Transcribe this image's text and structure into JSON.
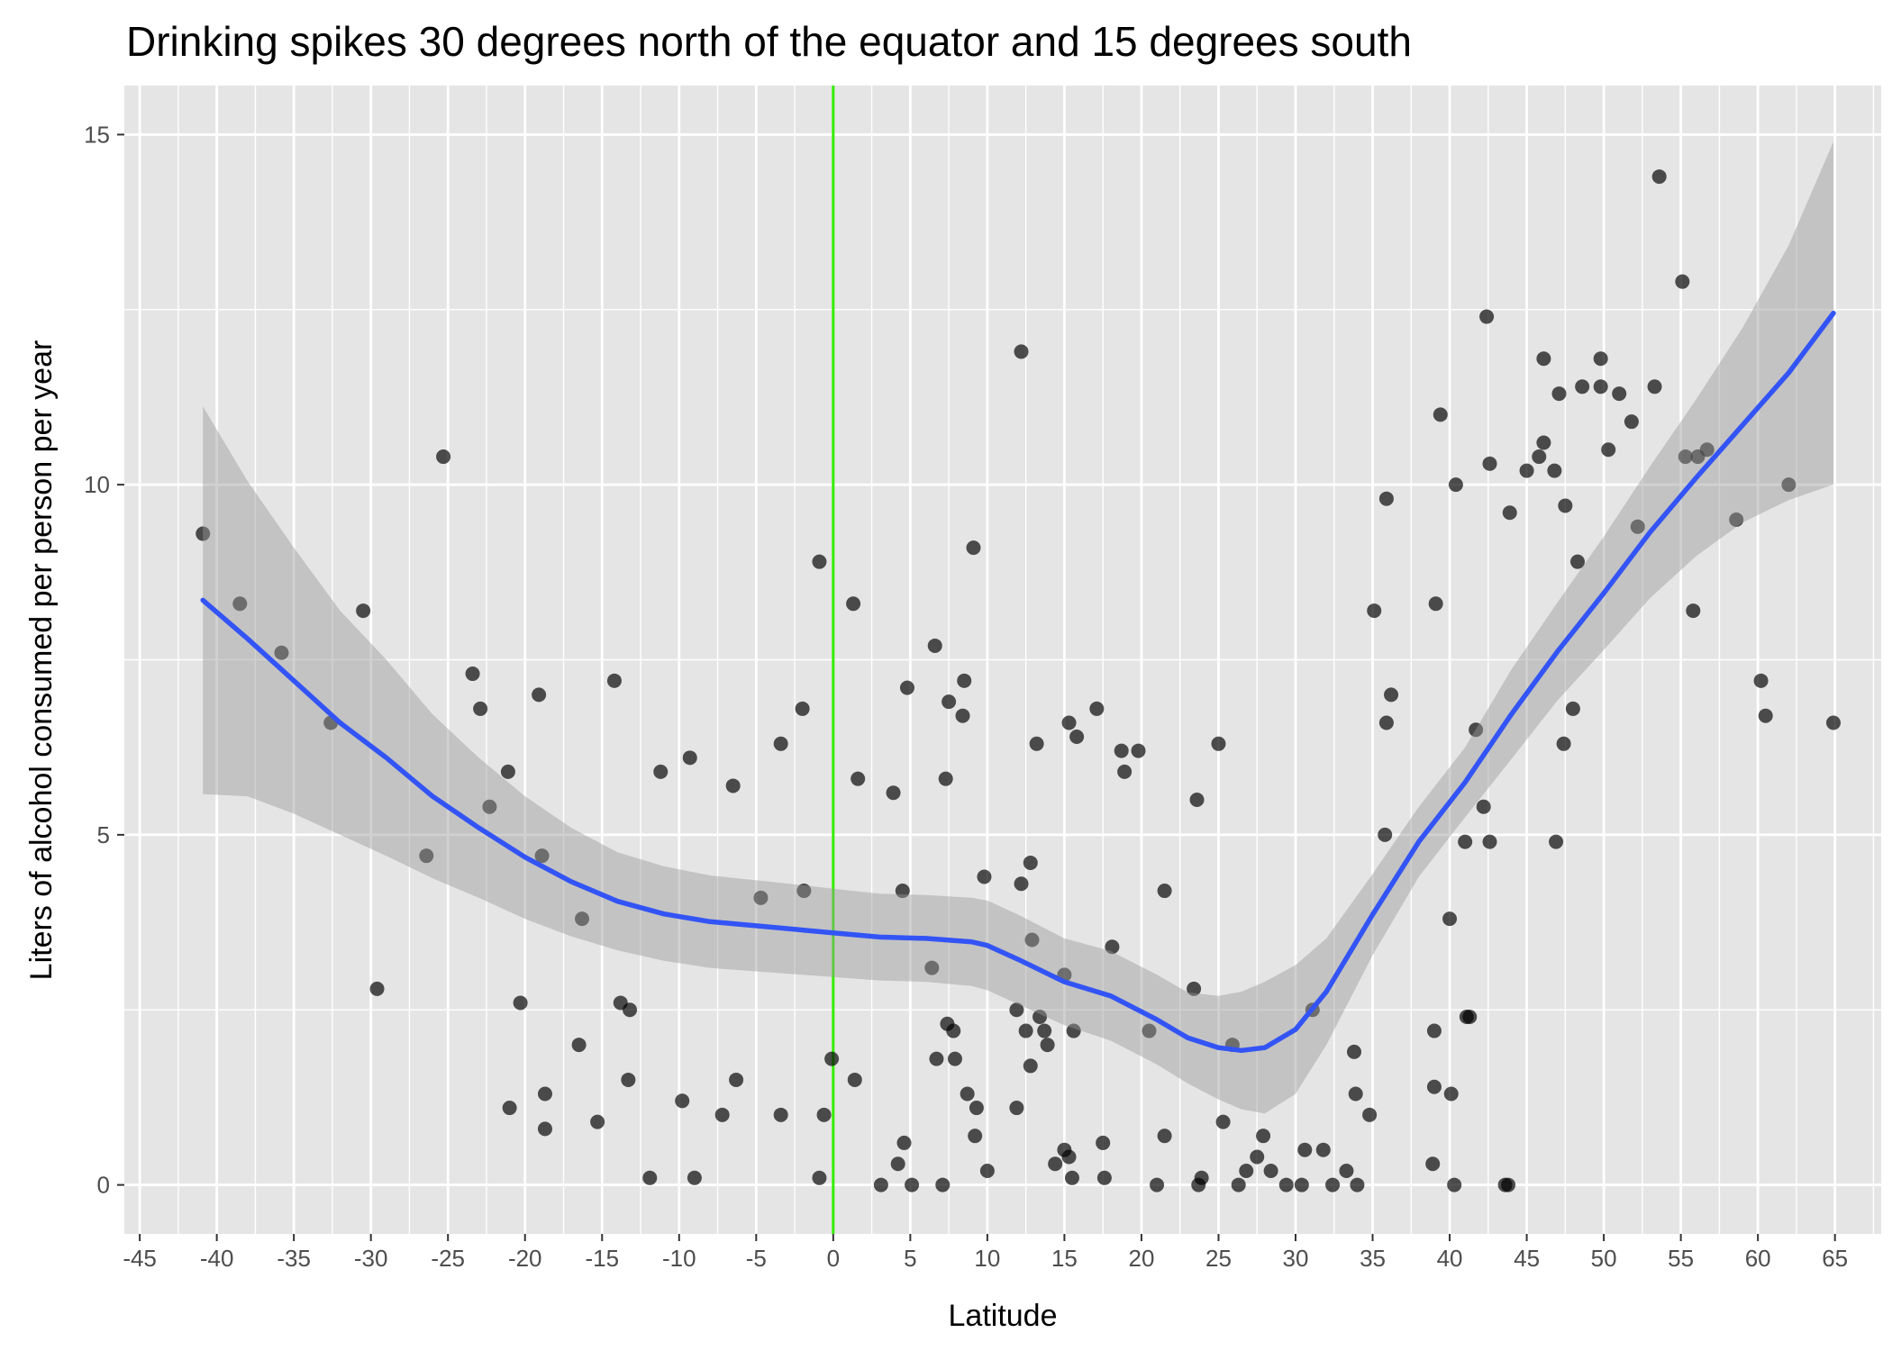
{
  "chart_data": {
    "type": "scatter",
    "title": "Drinking spikes 30 degrees north of the equator and 15 degrees south",
    "xlabel": "Latitude",
    "ylabel": "Liters of alcohol consumed per person per year",
    "xlim": [
      -46,
      68
    ],
    "ylim": [
      -0.7,
      15.7
    ],
    "x_ticks": [
      -45,
      -40,
      -35,
      -30,
      -25,
      -20,
      -15,
      -10,
      -5,
      0,
      5,
      10,
      15,
      20,
      25,
      30,
      35,
      40,
      45,
      50,
      55,
      60,
      65
    ],
    "y_ticks": [
      0,
      5,
      10,
      15
    ],
    "grid": true,
    "legend": "none",
    "colors": {
      "panel_background": "#e5e5e5",
      "grid_line": "#ffffff",
      "point": "#000000",
      "smooth_line": "#3354f5",
      "confidence_band": "#999999",
      "equator_line": "#33ee00"
    },
    "reference_line": {
      "axis": "x",
      "value": 0
    },
    "points": [
      [
        -40.9,
        9.3
      ],
      [
        -38.5,
        8.3
      ],
      [
        -35.8,
        7.6
      ],
      [
        -32.6,
        6.6
      ],
      [
        -30.5,
        8.2
      ],
      [
        -29.6,
        2.8
      ],
      [
        -26.4,
        4.7
      ],
      [
        -25.3,
        10.4
      ],
      [
        -23.4,
        7.3
      ],
      [
        -22.9,
        6.8
      ],
      [
        -22.3,
        5.4
      ],
      [
        -21.1,
        5.9
      ],
      [
        -21.0,
        1.1
      ],
      [
        -20.3,
        2.6
      ],
      [
        -19.1,
        7.0
      ],
      [
        -18.9,
        4.7
      ],
      [
        -18.7,
        1.3
      ],
      [
        -18.7,
        0.8
      ],
      [
        -16.3,
        3.8
      ],
      [
        -16.5,
        2.0
      ],
      [
        -15.3,
        0.9
      ],
      [
        -14.2,
        7.2
      ],
      [
        -13.8,
        2.6
      ],
      [
        -13.3,
        1.5
      ],
      [
        -13.2,
        2.5
      ],
      [
        -11.9,
        0.1
      ],
      [
        -11.2,
        5.9
      ],
      [
        -9.8,
        1.2
      ],
      [
        -9.3,
        6.1
      ],
      [
        -9.0,
        0.1
      ],
      [
        -7.2,
        1.0
      ],
      [
        -6.5,
        5.7
      ],
      [
        -6.3,
        1.5
      ],
      [
        -4.7,
        4.1
      ],
      [
        -3.4,
        6.3
      ],
      [
        -3.4,
        1.0
      ],
      [
        -1.9,
        4.2
      ],
      [
        -2.0,
        6.8
      ],
      [
        -0.9,
        8.9
      ],
      [
        -0.9,
        0.1
      ],
      [
        -0.6,
        1.0
      ],
      [
        -0.1,
        1.8
      ],
      [
        1.3,
        8.3
      ],
      [
        1.4,
        1.5
      ],
      [
        1.6,
        5.8
      ],
      [
        3.1,
        0.0
      ],
      [
        3.9,
        5.6
      ],
      [
        4.2,
        0.3
      ],
      [
        4.5,
        4.2
      ],
      [
        4.6,
        0.6
      ],
      [
        4.8,
        7.1
      ],
      [
        5.1,
        0.0
      ],
      [
        6.4,
        3.1
      ],
      [
        6.6,
        7.7
      ],
      [
        6.7,
        1.8
      ],
      [
        7.1,
        0.0
      ],
      [
        7.3,
        5.8
      ],
      [
        7.4,
        2.3
      ],
      [
        7.5,
        6.9
      ],
      [
        7.8,
        2.2
      ],
      [
        7.9,
        1.8
      ],
      [
        8.4,
        6.7
      ],
      [
        8.5,
        7.2
      ],
      [
        8.7,
        1.3
      ],
      [
        9.1,
        9.1
      ],
      [
        9.2,
        0.7
      ],
      [
        9.3,
        1.1
      ],
      [
        9.8,
        4.4
      ],
      [
        10.0,
        0.2
      ],
      [
        11.9,
        1.1
      ],
      [
        11.9,
        2.5
      ],
      [
        12.2,
        4.3
      ],
      [
        12.2,
        11.9
      ],
      [
        12.5,
        2.2
      ],
      [
        12.8,
        4.6
      ],
      [
        12.8,
        1.7
      ],
      [
        12.9,
        3.5
      ],
      [
        13.2,
        6.3
      ],
      [
        13.4,
        2.4
      ],
      [
        13.7,
        2.2
      ],
      [
        13.9,
        2.0
      ],
      [
        14.4,
        0.3
      ],
      [
        15.0,
        0.5
      ],
      [
        15.0,
        3.0
      ],
      [
        15.3,
        6.6
      ],
      [
        15.3,
        0.4
      ],
      [
        15.5,
        0.1
      ],
      [
        15.6,
        2.2
      ],
      [
        15.8,
        6.4
      ],
      [
        17.1,
        6.8
      ],
      [
        17.5,
        0.6
      ],
      [
        17.6,
        0.1
      ],
      [
        18.1,
        3.4
      ],
      [
        18.7,
        6.2
      ],
      [
        18.9,
        5.9
      ],
      [
        19.8,
        6.2
      ],
      [
        20.5,
        2.2
      ],
      [
        21.0,
        0.0
      ],
      [
        21.5,
        4.2
      ],
      [
        21.5,
        0.7
      ],
      [
        23.4,
        2.8
      ],
      [
        23.6,
        5.5
      ],
      [
        23.7,
        0.0
      ],
      [
        23.9,
        0.1
      ],
      [
        25.0,
        6.3
      ],
      [
        25.3,
        0.9
      ],
      [
        25.9,
        2.0
      ],
      [
        26.3,
        0.0
      ],
      [
        26.8,
        0.2
      ],
      [
        27.5,
        0.4
      ],
      [
        27.9,
        0.7
      ],
      [
        28.4,
        0.2
      ],
      [
        29.4,
        0.0
      ],
      [
        30.4,
        0.0
      ],
      [
        30.6,
        0.5
      ],
      [
        31.1,
        2.5
      ],
      [
        31.8,
        0.5
      ],
      [
        32.4,
        0.0
      ],
      [
        33.3,
        0.2
      ],
      [
        33.8,
        1.9
      ],
      [
        33.9,
        1.3
      ],
      [
        34.0,
        0.0
      ],
      [
        34.8,
        1.0
      ],
      [
        35.1,
        8.2
      ],
      [
        35.8,
        5.0
      ],
      [
        35.9,
        9.8
      ],
      [
        35.9,
        6.6
      ],
      [
        36.2,
        7.0
      ],
      [
        38.9,
        0.3
      ],
      [
        39.0,
        2.2
      ],
      [
        39.0,
        1.4
      ],
      [
        39.1,
        8.3
      ],
      [
        39.4,
        11.0
      ],
      [
        40.0,
        3.8
      ],
      [
        40.1,
        1.3
      ],
      [
        40.3,
        0.0
      ],
      [
        40.4,
        10.0
      ],
      [
        41.0,
        4.9
      ],
      [
        41.1,
        2.4
      ],
      [
        41.3,
        2.4
      ],
      [
        41.7,
        6.5
      ],
      [
        42.2,
        5.4
      ],
      [
        42.4,
        12.4
      ],
      [
        42.6,
        10.3
      ],
      [
        42.6,
        4.9
      ],
      [
        43.6,
        0.0
      ],
      [
        43.8,
        0.0
      ],
      [
        43.9,
        9.6
      ],
      [
        45.0,
        10.2
      ],
      [
        45.8,
        10.4
      ],
      [
        46.1,
        10.6
      ],
      [
        46.1,
        11.8
      ],
      [
        46.8,
        10.2
      ],
      [
        46.9,
        4.9
      ],
      [
        47.1,
        11.3
      ],
      [
        47.4,
        6.3
      ],
      [
        47.5,
        9.7
      ],
      [
        48.0,
        6.8
      ],
      [
        48.3,
        8.9
      ],
      [
        48.6,
        11.4
      ],
      [
        49.8,
        11.4
      ],
      [
        49.8,
        11.8
      ],
      [
        50.3,
        10.5
      ],
      [
        51.0,
        11.3
      ],
      [
        51.8,
        10.9
      ],
      [
        52.2,
        9.4
      ],
      [
        53.3,
        11.4
      ],
      [
        53.6,
        14.4
      ],
      [
        55.1,
        12.9
      ],
      [
        55.3,
        10.4
      ],
      [
        55.8,
        8.2
      ],
      [
        56.1,
        10.4
      ],
      [
        56.7,
        10.5
      ],
      [
        58.6,
        9.5
      ],
      [
        60.2,
        7.2
      ],
      [
        60.5,
        6.7
      ],
      [
        62.0,
        10.0
      ],
      [
        64.9,
        6.6
      ]
    ],
    "smooth_fit": {
      "x": [
        -40.9,
        -38,
        -35,
        -32,
        -29,
        -26,
        -23,
        -20,
        -17,
        -14,
        -11,
        -8,
        -5,
        -2,
        0,
        3,
        6,
        9,
        10,
        12,
        15,
        18,
        21,
        23,
        25,
        26.5,
        28,
        30,
        32,
        35,
        38,
        41,
        44,
        47,
        50,
        53,
        56,
        59,
        62,
        64.9
      ],
      "y": [
        8.35,
        7.8,
        7.2,
        6.6,
        6.1,
        5.55,
        5.1,
        4.68,
        4.33,
        4.05,
        3.87,
        3.76,
        3.7,
        3.64,
        3.6,
        3.54,
        3.52,
        3.47,
        3.42,
        3.22,
        2.9,
        2.7,
        2.36,
        2.1,
        1.96,
        1.92,
        1.96,
        2.22,
        2.76,
        3.86,
        4.9,
        5.75,
        6.72,
        7.62,
        8.45,
        9.32,
        10.1,
        10.85,
        11.6,
        12.45
      ],
      "lower": [
        5.58,
        5.55,
        5.3,
        5.0,
        4.7,
        4.38,
        4.1,
        3.8,
        3.55,
        3.35,
        3.2,
        3.1,
        3.05,
        3.0,
        2.97,
        2.92,
        2.9,
        2.84,
        2.78,
        2.58,
        2.28,
        2.06,
        1.72,
        1.45,
        1.22,
        1.08,
        1.02,
        1.3,
        2.0,
        3.28,
        4.4,
        5.25,
        6.08,
        6.92,
        7.64,
        8.38,
        8.98,
        9.46,
        9.78,
        10.0
      ],
      "upper": [
        11.12,
        10.05,
        9.1,
        8.2,
        7.5,
        6.72,
        6.1,
        5.55,
        5.1,
        4.75,
        4.55,
        4.42,
        4.35,
        4.28,
        4.23,
        4.16,
        4.14,
        4.1,
        4.06,
        3.86,
        3.52,
        3.34,
        3.0,
        2.75,
        2.7,
        2.76,
        2.9,
        3.14,
        3.52,
        4.44,
        5.4,
        6.25,
        7.36,
        8.32,
        9.26,
        10.26,
        11.22,
        12.24,
        13.42,
        14.9
      ]
    }
  }
}
